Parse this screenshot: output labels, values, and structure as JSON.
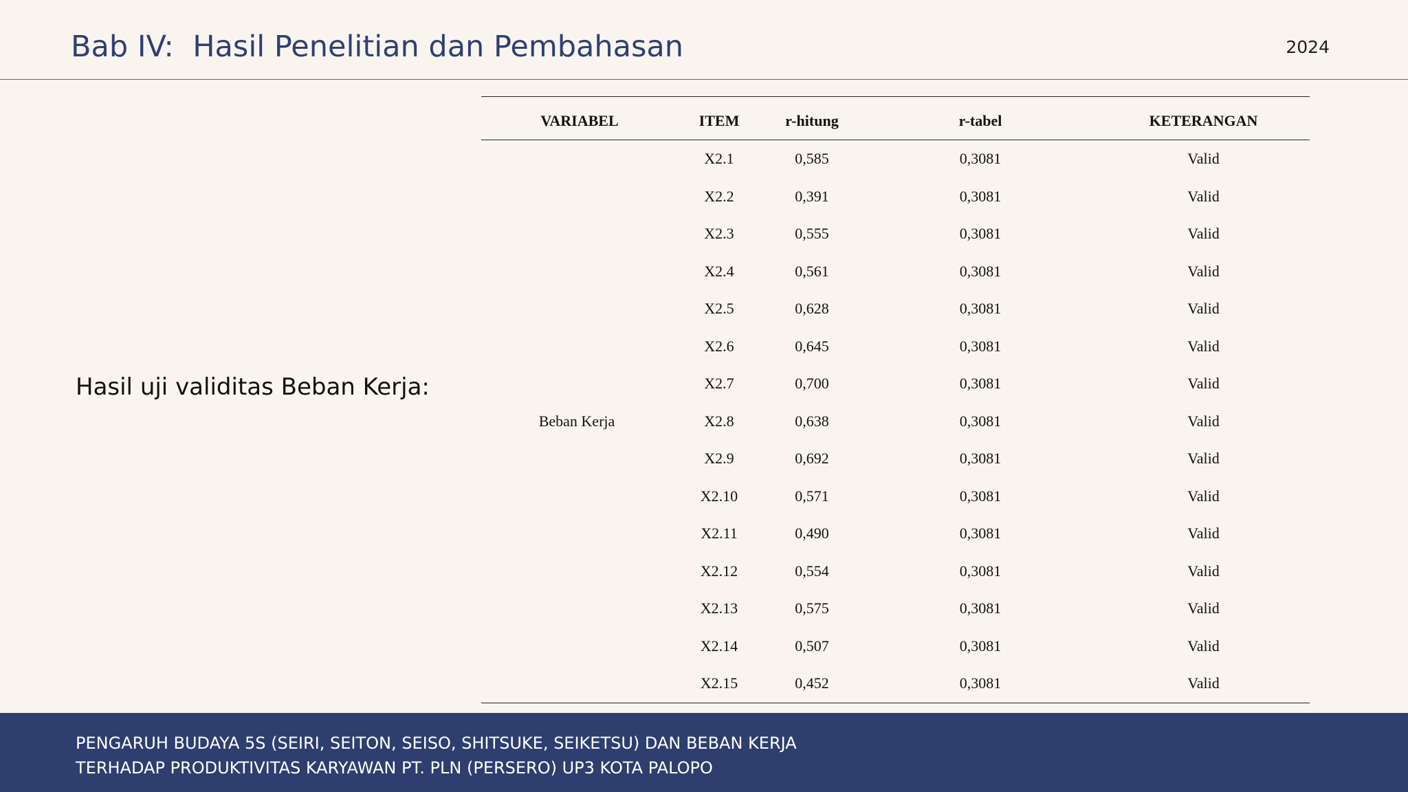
{
  "header": {
    "title": "Bab IV:  Hasil Penelitian dan Pembahasan",
    "year": "2024"
  },
  "main": {
    "caption": "Hasil uji validitas Beban Kerja:"
  },
  "table": {
    "headers": {
      "variabel": "VARIABEL",
      "item": "ITEM",
      "r_hitung": "r-hitung",
      "r_tabel": "r-tabel",
      "keterangan": "KETERANGAN"
    },
    "variable_name": "Beban Kerja",
    "rows": [
      {
        "item": "X2.1",
        "r_hitung": "0,585",
        "r_tabel": "0,3081",
        "keterangan": "Valid"
      },
      {
        "item": "X2.2",
        "r_hitung": "0,391",
        "r_tabel": "0,3081",
        "keterangan": "Valid"
      },
      {
        "item": "X2.3",
        "r_hitung": "0,555",
        "r_tabel": "0,3081",
        "keterangan": "Valid"
      },
      {
        "item": "X2.4",
        "r_hitung": "0,561",
        "r_tabel": "0,3081",
        "keterangan": "Valid"
      },
      {
        "item": "X2.5",
        "r_hitung": "0,628",
        "r_tabel": "0,3081",
        "keterangan": "Valid"
      },
      {
        "item": "X2.6",
        "r_hitung": "0,645",
        "r_tabel": "0,3081",
        "keterangan": "Valid"
      },
      {
        "item": "X2.7",
        "r_hitung": "0,700",
        "r_tabel": "0,3081",
        "keterangan": "Valid"
      },
      {
        "item": "X2.8",
        "r_hitung": "0,638",
        "r_tabel": "0,3081",
        "keterangan": "Valid"
      },
      {
        "item": "X2.9",
        "r_hitung": "0,692",
        "r_tabel": "0,3081",
        "keterangan": "Valid"
      },
      {
        "item": "X2.10",
        "r_hitung": "0,571",
        "r_tabel": "0,3081",
        "keterangan": "Valid"
      },
      {
        "item": "X2.11",
        "r_hitung": "0,490",
        "r_tabel": "0,3081",
        "keterangan": "Valid"
      },
      {
        "item": "X2.12",
        "r_hitung": "0,554",
        "r_tabel": "0,3081",
        "keterangan": "Valid"
      },
      {
        "item": "X2.13",
        "r_hitung": "0,575",
        "r_tabel": "0,3081",
        "keterangan": "Valid"
      },
      {
        "item": "X2.14",
        "r_hitung": "0,507",
        "r_tabel": "0,3081",
        "keterangan": "Valid"
      },
      {
        "item": "X2.15",
        "r_hitung": "0,452",
        "r_tabel": "0,3081",
        "keterangan": "Valid"
      }
    ]
  },
  "footer": {
    "line1": "PENGARUH BUDAYA 5S (SEIRI, SEITON, SEISO, SHITSUKE, SEIKETSU) DAN BEBAN KERJA",
    "line2": "TERHADAP PRODUKTIVITAS KARYAWAN PT. PLN (PERSERO) UP3 KOTA PALOPO"
  },
  "colors": {
    "background": "#f9f5ee",
    "title": "#2e3f73",
    "footer_band": "#2e3e6e",
    "footer_text": "#ffffff"
  }
}
